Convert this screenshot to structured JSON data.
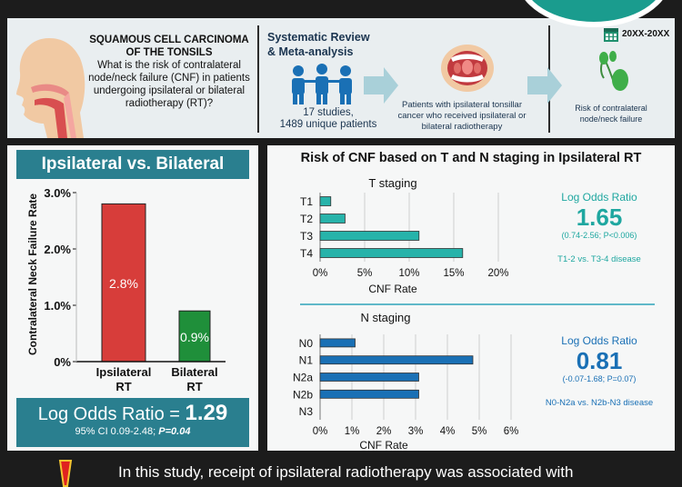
{
  "header": {
    "title_line1": "SQUAMOUS CELL CARCINOMA",
    "title_line2": "OF THE TONSILS",
    "question": "What is the risk of contralateral node/neck failure (CNF) in patients undergoing ipsilateral or bilateral radiotherapy (RT)?",
    "review_line1": "Systematic Review",
    "review_line2": "& Meta-analysis",
    "studies": "17 studies,",
    "patients": "1489 unique patients",
    "population": "Patients with ipsilateral tonsillar cancer who received ipsilateral or bilateral radiotherapy",
    "outcome": "Risk of contralateral node/neck failure",
    "date_range": "20XX-20XX"
  },
  "left_panel": {
    "title": "Ipsilateral vs. Bilateral",
    "lor_label": "Log Odds Ratio = ",
    "lor_value": "1.29",
    "ci_text": "95% CI 0.09-2.48; ",
    "p_text": "P=0.04"
  },
  "right_panel": {
    "title": "Risk of CNF based on T and N staging in Ipsilateral RT",
    "t_stats": {
      "label": "Log Odds Ratio",
      "value": "1.65",
      "ci": "(0.74-2.56; P<0.006)",
      "note": "T1-2 vs. T3-4 disease"
    },
    "n_stats": {
      "label": "Log Odds Ratio",
      "value": "0.81",
      "ci": "(-0.07-1.68; P=0.07)",
      "note": "N0-N2a vs. N2b-N3 disease"
    }
  },
  "banner": {
    "text": "In this study, receipt of ipsilateral radiotherapy was associated with"
  },
  "colors": {
    "teal": "#2a7f8f",
    "red": "#d73d3a",
    "green": "#1f8f3a",
    "t_bar": "#27b3aa",
    "n_bar": "#1a70b5"
  },
  "icons": [
    "throat-anatomy-icon",
    "people-group-icon",
    "open-mouth-icon",
    "lymph-node-icon",
    "calendar-icon",
    "arrow-right-icon",
    "warning-icon"
  ],
  "chart_data": [
    {
      "type": "bar",
      "categories": [
        "Ipsilateral RT",
        "Bilateral RT"
      ],
      "values": [
        2.8,
        0.9
      ],
      "data_labels": [
        "2.8%",
        "0.9%"
      ],
      "ylabel": "Contralateral Neck Failure Rate",
      "ylim": [
        0,
        3.0
      ],
      "yticks": [
        0,
        1.0,
        2.0,
        3.0
      ],
      "ytick_labels": [
        "0%",
        "1.0%",
        "2.0%",
        "3.0%"
      ],
      "bar_colors": [
        "#d73d3a",
        "#1f8f3a"
      ]
    },
    {
      "type": "bar",
      "orientation": "horizontal",
      "title": "T staging",
      "categories": [
        "T1",
        "T2",
        "T3",
        "T4"
      ],
      "values": [
        1.2,
        2.8,
        11.1,
        16.0
      ],
      "xlabel": "CNF Rate",
      "xlim": [
        0,
        20
      ],
      "xticks": [
        0,
        5,
        10,
        15,
        20
      ],
      "xtick_labels": [
        "0%",
        "5%",
        "10%",
        "15%",
        "20%"
      ]
    },
    {
      "type": "bar",
      "orientation": "horizontal",
      "title": "N staging",
      "categories": [
        "N0",
        "N1",
        "N2a",
        "N2b",
        "N3"
      ],
      "values": [
        1.1,
        4.8,
        3.1,
        3.1,
        0
      ],
      "xlabel": "CNF Rate",
      "xlim": [
        0,
        6
      ],
      "xticks": [
        0,
        1,
        2,
        3,
        4,
        5,
        6
      ],
      "xtick_labels": [
        "0%",
        "1%",
        "2%",
        "3%",
        "4%",
        "5%",
        "6%"
      ]
    }
  ]
}
